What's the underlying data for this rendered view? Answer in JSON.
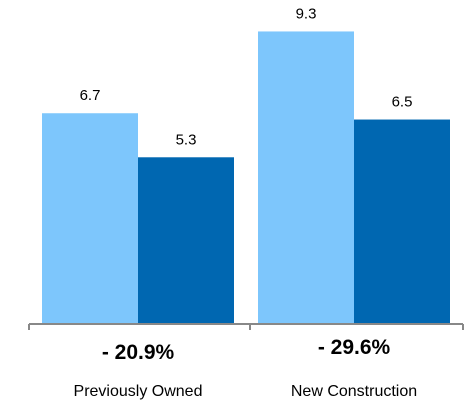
{
  "chart_data": {
    "type": "bar",
    "categories": [
      "Previously Owned",
      "New Construction"
    ],
    "series": [
      {
        "values": [
          6.7,
          9.3
        ],
        "color": "#7DC6FC"
      },
      {
        "values": [
          5.3,
          6.5
        ],
        "color": "#0067B1"
      }
    ],
    "data_labels": [
      [
        "6.7",
        "9.3"
      ],
      [
        "5.3",
        "6.5"
      ]
    ],
    "change_labels": [
      "- 20.9%",
      "- 29.6%"
    ],
    "ylim": [
      0,
      10.3
    ],
    "grid": false,
    "legend": "none",
    "axis_color": "#888888"
  }
}
